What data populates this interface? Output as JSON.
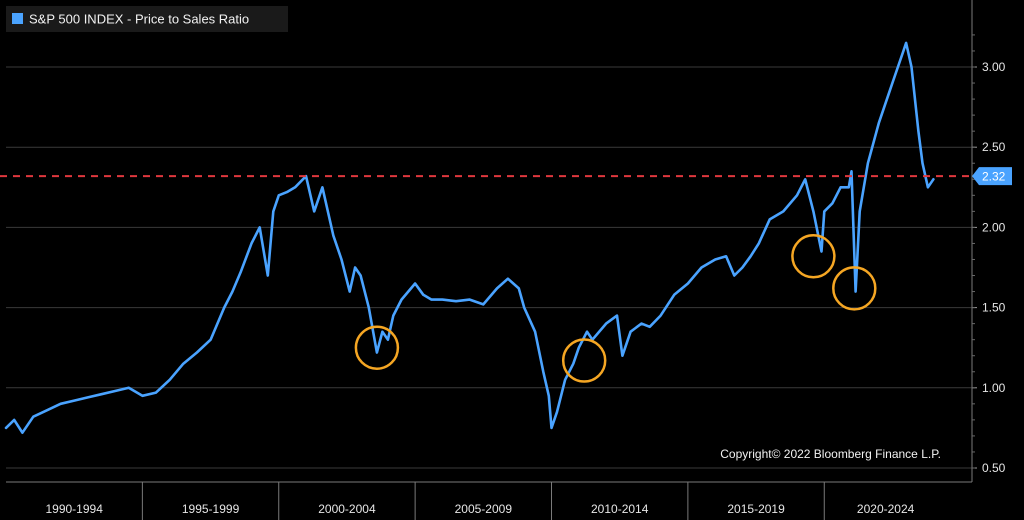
{
  "colors": {
    "background": "#000000",
    "series": "#4aa3ff",
    "grid": "#3a3a3a",
    "reference_line": "#e0383e",
    "highlight_circle": "#f5a623",
    "label_box": "#4aa3ff"
  },
  "legend": {
    "label": "S&P 500 INDEX - Price to Sales Ratio",
    "placement": "top-left"
  },
  "copyright": "Copyright© 2022 Bloomberg Finance L.P.",
  "reference": {
    "label": "2.32",
    "value": 2.32
  },
  "chart_data": {
    "type": "line",
    "title": "",
    "xlabel": "",
    "ylabel": "",
    "grid": true,
    "y_axis_side": "right",
    "ylim": [
      0.5,
      3.3
    ],
    "xlim": [
      1989.0,
      2023.5
    ],
    "yticks": [
      0.5,
      1.0,
      1.5,
      2.0,
      2.5,
      3.0
    ],
    "ytick_labels": [
      "0.50",
      "1.00",
      "1.50",
      "2.00",
      "2.50",
      "3.00"
    ],
    "x_categories": [
      "1990-1994",
      "1995-1999",
      "2000-2004",
      "2005-2009",
      "2010-2014",
      "2015-2019",
      "2020-2024"
    ],
    "x_category_bounds": [
      1989.0,
      1994.0,
      1999.0,
      2004.0,
      2009.0,
      2014.0,
      2019.0,
      2023.5
    ],
    "series": [
      {
        "name": "S&P 500 INDEX - Price to Sales Ratio",
        "x": [
          1989.0,
          1989.3,
          1989.6,
          1990.0,
          1990.5,
          1991.0,
          1991.5,
          1992.0,
          1992.5,
          1993.0,
          1993.5,
          1994.0,
          1994.5,
          1995.0,
          1995.5,
          1996.0,
          1996.5,
          1997.0,
          1997.3,
          1997.6,
          1998.0,
          1998.3,
          1998.6,
          1998.8,
          1999.0,
          1999.3,
          1999.6,
          2000.0,
          2000.3,
          2000.6,
          2001.0,
          2001.3,
          2001.6,
          2001.8,
          2002.0,
          2002.3,
          2002.6,
          2002.8,
          2003.0,
          2003.2,
          2003.5,
          2004.0,
          2004.3,
          2004.6,
          2005.0,
          2005.5,
          2006.0,
          2006.5,
          2007.0,
          2007.4,
          2007.8,
          2008.0,
          2008.4,
          2008.7,
          2008.9,
          2009.0,
          2009.2,
          2009.5,
          2009.8,
          2010.0,
          2010.3,
          2010.5,
          2011.0,
          2011.4,
          2011.6,
          2011.9,
          2012.3,
          2012.6,
          2013.0,
          2013.5,
          2014.0,
          2014.5,
          2015.0,
          2015.4,
          2015.7,
          2016.0,
          2016.3,
          2016.6,
          2017.0,
          2017.5,
          2018.0,
          2018.3,
          2018.6,
          2018.9,
          2019.0,
          2019.3,
          2019.6,
          2019.9,
          2020.0,
          2020.15,
          2020.3,
          2020.6,
          2021.0,
          2021.5,
          2021.9,
          2022.0,
          2022.2,
          2022.45,
          2022.6,
          2022.8,
          2023.0
        ],
        "values": [
          0.75,
          0.8,
          0.72,
          0.82,
          0.86,
          0.9,
          0.92,
          0.94,
          0.96,
          0.98,
          1.0,
          0.95,
          0.97,
          1.05,
          1.15,
          1.22,
          1.3,
          1.5,
          1.6,
          1.72,
          1.9,
          2.0,
          1.7,
          2.1,
          2.2,
          2.22,
          2.25,
          2.32,
          2.1,
          2.25,
          1.95,
          1.8,
          1.6,
          1.75,
          1.7,
          1.5,
          1.22,
          1.35,
          1.3,
          1.45,
          1.55,
          1.65,
          1.58,
          1.55,
          1.55,
          1.54,
          1.55,
          1.52,
          1.62,
          1.68,
          1.62,
          1.5,
          1.35,
          1.1,
          0.95,
          0.75,
          0.85,
          1.05,
          1.15,
          1.25,
          1.35,
          1.3,
          1.4,
          1.45,
          1.2,
          1.35,
          1.4,
          1.38,
          1.45,
          1.58,
          1.65,
          1.75,
          1.8,
          1.82,
          1.7,
          1.75,
          1.82,
          1.9,
          2.05,
          2.1,
          2.2,
          2.3,
          2.1,
          1.85,
          2.1,
          2.15,
          2.25,
          2.25,
          2.35,
          1.6,
          2.1,
          2.4,
          2.65,
          2.9,
          3.1,
          3.15,
          3.0,
          2.6,
          2.4,
          2.25,
          2.3
        ]
      }
    ],
    "highlights": [
      {
        "x": 2002.6,
        "y": 1.25
      },
      {
        "x": 2010.2,
        "y": 1.17
      },
      {
        "x": 2018.6,
        "y": 1.82
      },
      {
        "x": 2020.1,
        "y": 1.62
      }
    ],
    "reference_line": {
      "y": 2.32,
      "style": "dashed"
    },
    "annotation": "Copyright© 2022 Bloomberg Finance L.P."
  }
}
